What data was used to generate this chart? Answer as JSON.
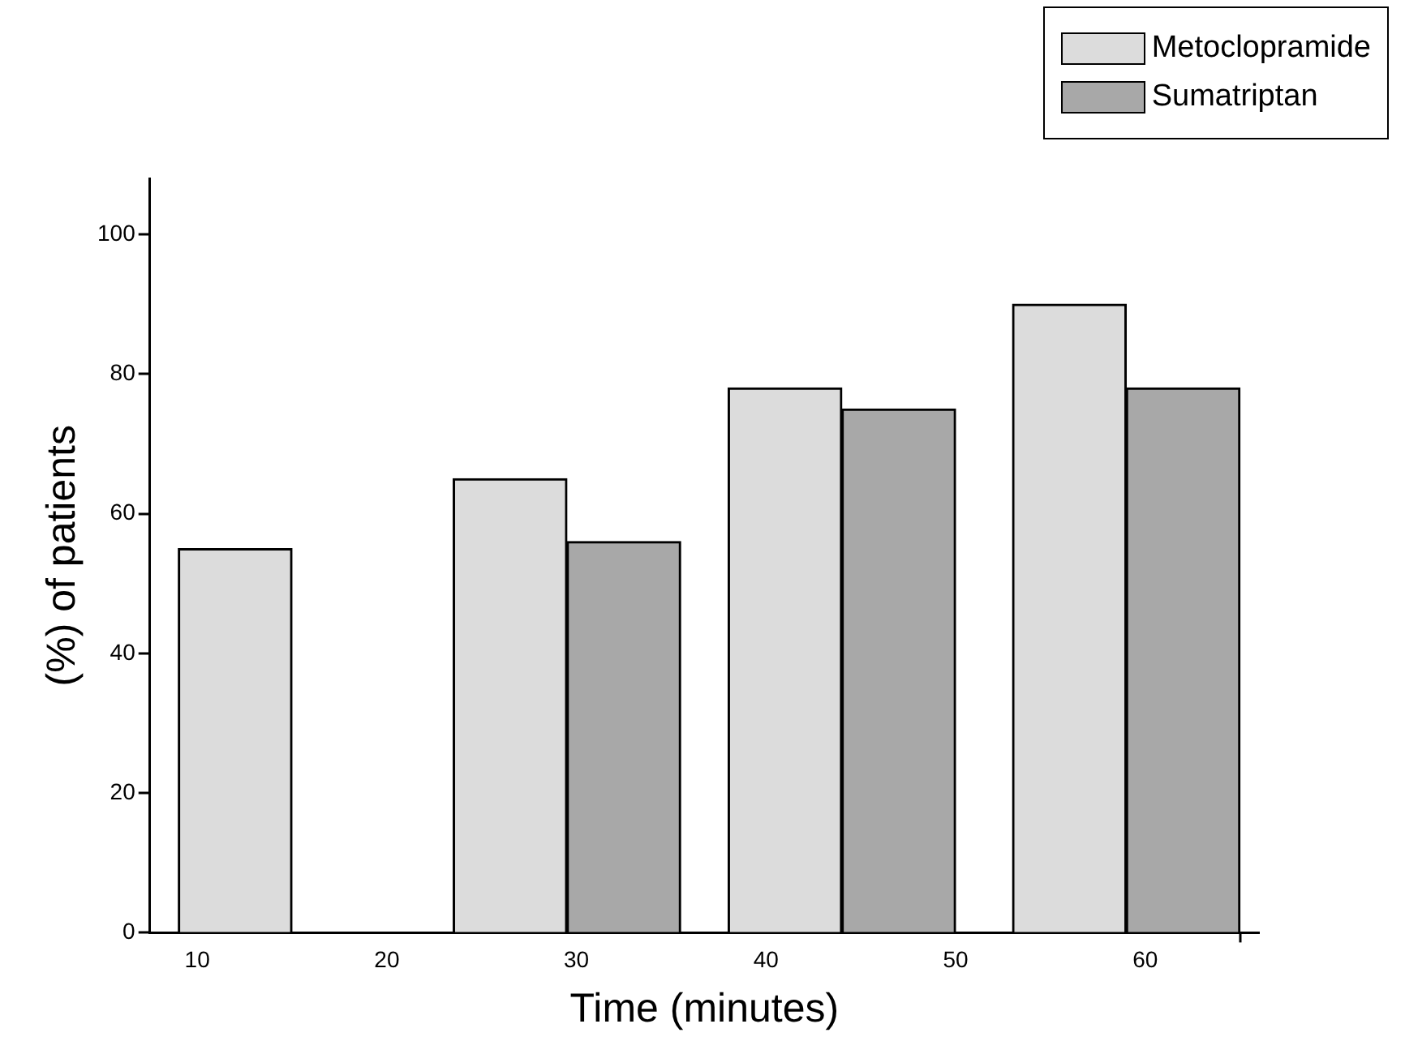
{
  "chart_data": {
    "type": "bar",
    "xlabel": "Time (minutes)",
    "ylabel": "(%) of patients",
    "legend": "top right",
    "xlim": [
      7.5,
      66
    ],
    "xticks": [
      10,
      20,
      30,
      40,
      50,
      60
    ],
    "ylim": [
      0,
      108
    ],
    "yticks": [
      0,
      20,
      40,
      60,
      80,
      100
    ],
    "series": [
      {
        "name": "Metoclopramide",
        "color": "#dcdcdc",
        "x": [
          12,
          26.5,
          41,
          56
        ],
        "values": [
          55,
          65,
          78,
          90
        ]
      },
      {
        "name": "Sumatriptan",
        "color": "#a8a8a8",
        "x": [
          32.5,
          47,
          62
        ],
        "values": [
          56,
          75,
          78
        ]
      }
    ]
  }
}
